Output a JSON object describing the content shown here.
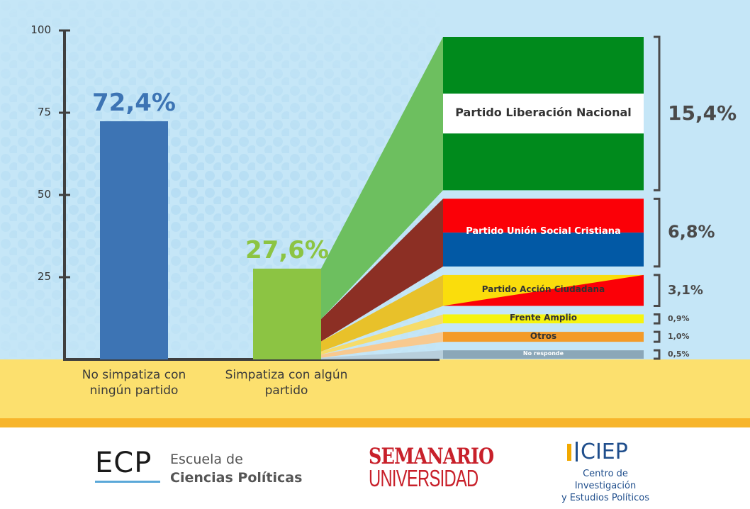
{
  "colors": {
    "sky": "#c5e6f7",
    "dots": "#b3dcf2",
    "sand": "#fce06e",
    "sand_stripe": "#f7b52c",
    "axis": "#3f3f3f",
    "bar_no": "#3d74b4",
    "bar_yes": "#8cc443",
    "pct_no": "#3d74b4",
    "pct_yes": "#8cc443"
  },
  "chart_data": {
    "type": "bar",
    "title": "",
    "ylim": [
      0,
      100
    ],
    "yticks": [
      25,
      50,
      75,
      100
    ],
    "categories": [
      "No simpatiza con ningún partido",
      "Simpatiza con algún partido"
    ],
    "values": [
      72.4,
      27.6
    ],
    "value_labels": [
      "72,4%",
      "27,6%"
    ],
    "breakdown": {
      "of": "Simpatiza con algún partido",
      "parties": [
        {
          "name": "Partido Liberación Nacional",
          "value": 15.4,
          "label": "15,4%",
          "colors": [
            "#008a1c",
            "#ffffff",
            "#008a1c"
          ],
          "fan": "#6dbf5f"
        },
        {
          "name": "Partido Unión Social Cristiana",
          "value": 6.8,
          "label": "6,8%",
          "colors": [
            "#fb0007",
            "#0259a5"
          ],
          "fan": "#8c2f24"
        },
        {
          "name": "Partido Acción Ciudadana",
          "value": 3.1,
          "label": "3,1%",
          "colors": [
            "#fadd0c",
            "#fb0007"
          ],
          "fan": "#e8c12a"
        },
        {
          "name": "Frente Amplio",
          "value": 0.9,
          "label": "0,9%",
          "colors": [
            "#f6f40f"
          ],
          "fan": "#f6dc6a"
        },
        {
          "name": "Otros",
          "value": 1.0,
          "label": "1,0%",
          "colors": [
            "#f39b29"
          ],
          "fan": "#f8c98f"
        },
        {
          "name": "No responde",
          "value": 0.5,
          "label": "0,5%",
          "colors": [
            "#8ba7b8"
          ],
          "fan": "#b8cfdc"
        }
      ]
    }
  },
  "logos": {
    "ecp_short": "ECP",
    "ecp_line1": "Escuela de",
    "ecp_line2": "Ciencias Políticas",
    "semanario_line1": "SEMANARIO",
    "semanario_line2": "UNIVERSIDAD",
    "ciep_short": "CIEP",
    "ciep_line1": "Centro de Investigación",
    "ciep_line2": "y Estudios Políticos"
  }
}
